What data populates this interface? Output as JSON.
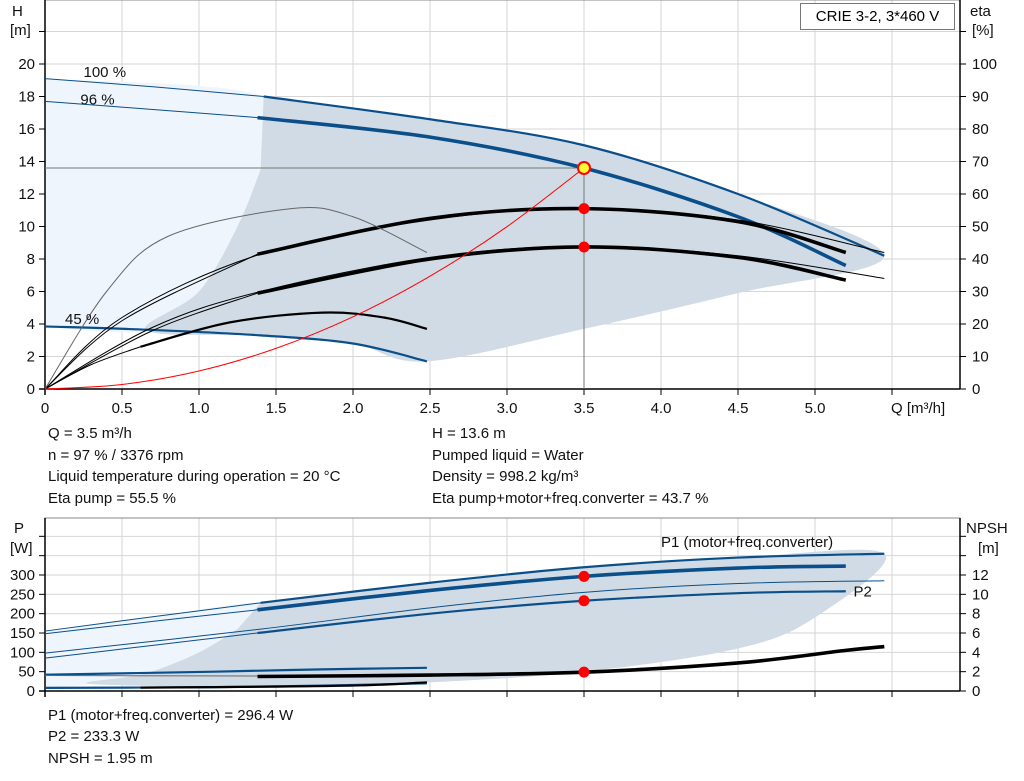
{
  "colors": {
    "blue": "#0b4f8a",
    "black": "#000000",
    "red": "#ff0000",
    "gray": "#666666",
    "operating_region": "#d0dbe6",
    "extended_region": "#eef5fc",
    "grid": "#d6d6d6",
    "op_point_fill": "#ffff33"
  },
  "legend_box": "CRIE 3-2, 3*460 V",
  "top_info": {
    "left": [
      "Q = 3.5 m³/h",
      "n = 97 % / 3376 rpm",
      "Liquid temperature during operation = 20 °C",
      "Eta pump = 55.5 %"
    ],
    "right": [
      "H = 13.6 m",
      "Pumped liquid = Water",
      "Density = 998.2 kg/m³",
      "Eta pump+motor+freq.converter = 43.7 %"
    ]
  },
  "bottom_info": [
    "P1 (motor+freq.converter) = 296.4 W",
    "P2 = 233.3 W",
    "NPSH = 1.95 m"
  ],
  "chart_data": [
    {
      "type": "line",
      "ylabel": "H",
      "yunit": "[m]",
      "y2label": "eta",
      "y2unit": "[%]",
      "xlabel": "Q [m³/h]",
      "xlim": [
        0,
        5.9
      ],
      "ylim": [
        0,
        24
      ],
      "y2lim": [
        0,
        120
      ],
      "xticks": [
        "0",
        "0.5",
        "1.0",
        "1.5",
        "2.0",
        "2.5",
        "3.0",
        "3.5",
        "4.0",
        "4.5",
        "5.0"
      ],
      "xtick_values": [
        0,
        0.5,
        1.0,
        1.5,
        2.0,
        2.5,
        3.0,
        3.5,
        4.0,
        4.5,
        5.0
      ],
      "yticks": [
        0,
        2,
        4,
        6,
        8,
        10,
        12,
        14,
        16,
        18,
        20
      ],
      "y2ticks": [
        0,
        10,
        20,
        30,
        40,
        50,
        60,
        70,
        80,
        90,
        100
      ],
      "grid": true,
      "curve_labels": [
        {
          "text": "100 %",
          "q": 0.25,
          "h": 19.2
        },
        {
          "text": "96 %",
          "q": 0.23,
          "h": 17.5
        },
        {
          "text": "45 %",
          "q": 0.13,
          "h": 4.0
        }
      ],
      "regions": [
        {
          "name": "extended-region",
          "color": "extended_region",
          "points": [
            [
              0,
              19.1
            ],
            [
              1.42,
              18.0
            ],
            [
              1.4,
              13.5
            ],
            [
              1.25,
              10
            ],
            [
              1.0,
              6
            ],
            [
              0.66,
              3.6
            ],
            [
              0,
              3.85
            ]
          ]
        },
        {
          "name": "operating-region",
          "color": "operating_region",
          "points": [
            [
              1.42,
              18.0
            ],
            [
              2.5,
              16.6
            ],
            [
              3.5,
              15.0
            ],
            [
              4.5,
              12.0
            ],
            [
              5.45,
              8.2
            ],
            [
              4.5,
              5.9
            ],
            [
              3.5,
              3.7
            ],
            [
              2.48,
              1.7
            ],
            [
              2.0,
              2.8
            ],
            [
              1.4,
              3.3
            ],
            [
              0.66,
              3.6
            ],
            [
              1.0,
              6
            ],
            [
              1.25,
              10
            ],
            [
              1.4,
              13.5
            ]
          ]
        }
      ],
      "series": [
        {
          "name": "100 %",
          "quantity": "H",
          "emphasis": "thin",
          "color": "blue",
          "points": [
            [
              0,
              19.1
            ],
            [
              0.7,
              18.6
            ],
            [
              1.42,
              18.0
            ]
          ]
        },
        {
          "name": "100 %",
          "quantity": "H",
          "emphasis": "medium",
          "color": "blue",
          "points": [
            [
              1.42,
              18.0
            ],
            [
              2.5,
              16.6
            ],
            [
              3.5,
              15.0
            ],
            [
              4.5,
              12.0
            ],
            [
              5.45,
              8.2
            ]
          ]
        },
        {
          "name": "96 %",
          "quantity": "H",
          "emphasis": "thin",
          "color": "blue",
          "points": [
            [
              0,
              17.7
            ],
            [
              0.7,
              17.2
            ],
            [
              1.38,
              16.7
            ]
          ]
        },
        {
          "name": "96 %",
          "quantity": "H",
          "emphasis": "bold",
          "color": "blue",
          "points": [
            [
              1.38,
              16.7
            ],
            [
              2.5,
              15.5
            ],
            [
              3.5,
              13.6
            ],
            [
              4.5,
              10.6
            ],
            [
              5.2,
              7.6
            ]
          ]
        },
        {
          "name": "45 %",
          "quantity": "H",
          "emphasis": "medium",
          "color": "blue",
          "points": [
            [
              0,
              3.85
            ],
            [
              0.66,
              3.65
            ],
            [
              1.4,
              3.3
            ],
            [
              2.0,
              2.8
            ],
            [
              2.48,
              1.7
            ]
          ]
        },
        {
          "name": "eta-pump-100",
          "quantity": "eta",
          "emphasis": "thin",
          "color": "black",
          "points": [
            [
              0,
              0
            ],
            [
              0.5,
              22
            ],
            [
              1.4,
              41.5
            ],
            [
              2.5,
              52
            ],
            [
              3.5,
              55.6
            ],
            [
              4.5,
              52
            ],
            [
              5.45,
              42
            ]
          ]
        },
        {
          "name": "eta-pump-96",
          "quantity": "eta",
          "emphasis": "thin",
          "color": "black",
          "points": [
            [
              0,
              0
            ],
            [
              0.5,
              21
            ],
            [
              1.38,
              41.5
            ]
          ]
        },
        {
          "name": "eta-pump-96",
          "quantity": "eta",
          "emphasis": "bold",
          "color": "black",
          "points": [
            [
              1.38,
              41.5
            ],
            [
              2.5,
              52.5
            ],
            [
              3.5,
              55.5
            ],
            [
              4.5,
              51.5
            ],
            [
              5.2,
              42
            ]
          ]
        },
        {
          "name": "eta-total-100",
          "quantity": "eta",
          "emphasis": "thin",
          "color": "black",
          "points": [
            [
              0,
              0
            ],
            [
              0.7,
              19
            ],
            [
              1.4,
              30
            ],
            [
              2.5,
              40.5
            ],
            [
              3.5,
              44
            ],
            [
              4.5,
              41
            ],
            [
              5.45,
              34
            ]
          ]
        },
        {
          "name": "eta-total-96",
          "quantity": "eta",
          "emphasis": "thin",
          "color": "black",
          "points": [
            [
              0,
              0
            ],
            [
              0.7,
              18
            ],
            [
              1.38,
              29.5
            ]
          ]
        },
        {
          "name": "eta-total-96",
          "quantity": "eta",
          "emphasis": "bold",
          "color": "black",
          "points": [
            [
              1.38,
              29.5
            ],
            [
              2.5,
              40
            ],
            [
              3.5,
              43.7
            ],
            [
              4.5,
              40.5
            ],
            [
              5.2,
              33.5
            ]
          ]
        },
        {
          "name": "eta-pump-45",
          "quantity": "eta",
          "emphasis": "thin",
          "color": "black",
          "points": [
            [
              0,
              0
            ],
            [
              0.3,
              7.5
            ],
            [
              0.62,
              13
            ]
          ]
        },
        {
          "name": "eta-pump-45",
          "quantity": "eta",
          "emphasis": "medium",
          "color": "black",
          "points": [
            [
              0.62,
              13
            ],
            [
              1.2,
              20.5
            ],
            [
              1.8,
              23.5
            ],
            [
              2.2,
              22
            ],
            [
              2.48,
              18.5
            ]
          ]
        },
        {
          "name": "eta-max-45",
          "quantity": "eta",
          "emphasis": "thin",
          "color": "gray",
          "points": [
            [
              0,
              0
            ],
            [
              0.4,
              30
            ],
            [
              0.8,
              47
            ],
            [
              1.6,
              55.5
            ],
            [
              2.0,
              53
            ],
            [
              2.48,
              42
            ]
          ]
        },
        {
          "name": "system-curve",
          "quantity": "H",
          "emphasis": "thin",
          "color": "red",
          "points": [
            [
              0,
              0
            ],
            [
              0.5,
              0.28
            ],
            [
              1.0,
              1.11
            ],
            [
              1.5,
              2.5
            ],
            [
              2.0,
              4.44
            ],
            [
              2.5,
              6.94
            ],
            [
              3.0,
              9.99
            ],
            [
              3.5,
              13.6
            ]
          ]
        }
      ],
      "duty_lines": {
        "q": 3.5,
        "h": 13.6
      },
      "operating_point": {
        "q": 3.5,
        "h": 13.6
      },
      "markers": [
        {
          "q": 3.5,
          "eta": 55.5
        },
        {
          "q": 3.5,
          "eta": 43.7
        }
      ]
    },
    {
      "type": "line",
      "ylabel": "P",
      "yunit": "[W]",
      "y2label": "NPSH",
      "y2unit": "[m]",
      "xlim": [
        0,
        5.9
      ],
      "ylim": [
        0,
        447
      ],
      "y2lim": [
        0,
        17.9
      ],
      "yticks": [
        0,
        50,
        100,
        150,
        200,
        250,
        300
      ],
      "y2ticks": [
        0,
        2,
        4,
        6,
        8,
        10,
        12
      ],
      "grid": true,
      "curve_labels": [
        {
          "text": "P1 (motor+freq.converter)",
          "q": 4.0,
          "p": 372,
          "color": "blue"
        },
        {
          "text": "P2",
          "q": 5.25,
          "p": 245,
          "color": "blue"
        }
      ],
      "regions": [
        {
          "name": "extended-region",
          "color": "extended_region",
          "points": [
            [
              0,
              155
            ],
            [
              0.7,
              192
            ],
            [
              1.4,
              228
            ],
            [
              1.25,
              160
            ],
            [
              1.0,
              100
            ],
            [
              0.65,
              45
            ],
            [
              0.3,
              18
            ],
            [
              0,
              8
            ]
          ]
        },
        {
          "name": "operating-region",
          "color": "operating_region",
          "points": [
            [
              1.4,
              228
            ],
            [
              2.5,
              280
            ],
            [
              3.5,
              320
            ],
            [
              4.5,
              345
            ],
            [
              5.45,
              355
            ],
            [
              5.0,
              190
            ],
            [
              4.5,
              110
            ],
            [
              3.5,
              50
            ],
            [
              2.48,
              22
            ],
            [
              1.5,
              12
            ],
            [
              0.3,
              18
            ],
            [
              0.65,
              45
            ],
            [
              1.0,
              100
            ],
            [
              1.25,
              160
            ]
          ]
        }
      ],
      "series": [
        {
          "name": "P1 100 %",
          "quantity": "P",
          "emphasis": "thin",
          "color": "blue",
          "points": [
            [
              0,
              155
            ],
            [
              0.7,
              192
            ],
            [
              1.4,
              228
            ]
          ]
        },
        {
          "name": "P1 100 %",
          "quantity": "P",
          "emphasis": "medium",
          "color": "blue",
          "points": [
            [
              1.4,
              228
            ],
            [
              2.5,
              280
            ],
            [
              3.5,
              320
            ],
            [
              4.5,
              345
            ],
            [
              5.45,
              355
            ]
          ]
        },
        {
          "name": "P1 96 %",
          "quantity": "P",
          "emphasis": "thin",
          "color": "blue",
          "points": [
            [
              0,
              148
            ],
            [
              0.7,
              180
            ],
            [
              1.38,
              210
            ]
          ]
        },
        {
          "name": "P1 96 %",
          "quantity": "P",
          "emphasis": "bold",
          "color": "blue",
          "points": [
            [
              1.38,
              210
            ],
            [
              2.5,
              260
            ],
            [
              3.5,
              296.4
            ],
            [
              4.5,
              318
            ],
            [
              5.2,
              323
            ]
          ]
        },
        {
          "name": "P2 100 %",
          "quantity": "P",
          "emphasis": "thin",
          "color": "blue",
          "points": [
            [
              0,
              98
            ],
            [
              1.4,
              160
            ],
            [
              2.5,
              215
            ],
            [
              3.5,
              255
            ],
            [
              4.5,
              278
            ],
            [
              5.45,
              285
            ]
          ]
        },
        {
          "name": "P2 96 %",
          "quantity": "P",
          "emphasis": "thin",
          "color": "blue",
          "points": [
            [
              0,
              85
            ],
            [
              0.7,
              118
            ],
            [
              1.38,
              150
            ]
          ]
        },
        {
          "name": "P2 96 %",
          "quantity": "P",
          "emphasis": "medium",
          "color": "blue",
          "points": [
            [
              1.38,
              150
            ],
            [
              2.5,
              200
            ],
            [
              3.5,
              233.3
            ],
            [
              4.5,
              253
            ],
            [
              5.2,
              258
            ]
          ]
        },
        {
          "name": "P1 45 %",
          "quantity": "P",
          "emphasis": "medium",
          "color": "blue",
          "points": [
            [
              0,
              42
            ],
            [
              1.1,
              50
            ],
            [
              1.8,
              56
            ],
            [
              2.48,
              60
            ]
          ]
        },
        {
          "name": "P2 45 %",
          "quantity": "P",
          "emphasis": "medium",
          "color": "blue",
          "points": [
            [
              0,
              8
            ],
            [
              1.1,
              10
            ],
            [
              1.8,
              14
            ],
            [
              2.48,
              20
            ]
          ]
        },
        {
          "name": "NPSH 100 %",
          "quantity": "NPSH",
          "emphasis": "thin",
          "color": "gray",
          "points": [
            [
              0,
              1.6
            ],
            [
              1.4,
              1.55
            ]
          ]
        },
        {
          "name": "NPSH 96 %",
          "quantity": "NPSH",
          "emphasis": "bold",
          "color": "black",
          "points": [
            [
              1.38,
              1.5
            ],
            [
              2.5,
              1.65
            ],
            [
              3.5,
              1.95
            ],
            [
              4.5,
              2.9
            ],
            [
              5.2,
              4.2
            ],
            [
              5.45,
              4.6
            ]
          ]
        },
        {
          "name": "NPSH 45 %",
          "quantity": "NPSH",
          "emphasis": "medium",
          "color": "black",
          "points": [
            [
              0.62,
              0.35
            ],
            [
              1.5,
              0.45
            ],
            [
              2.1,
              0.6
            ],
            [
              2.48,
              0.9
            ]
          ]
        }
      ],
      "markers": [
        {
          "q": 3.5,
          "p": 296.4
        },
        {
          "q": 3.5,
          "p": 233.3
        },
        {
          "q": 3.5,
          "npsh": 1.95
        }
      ]
    }
  ]
}
